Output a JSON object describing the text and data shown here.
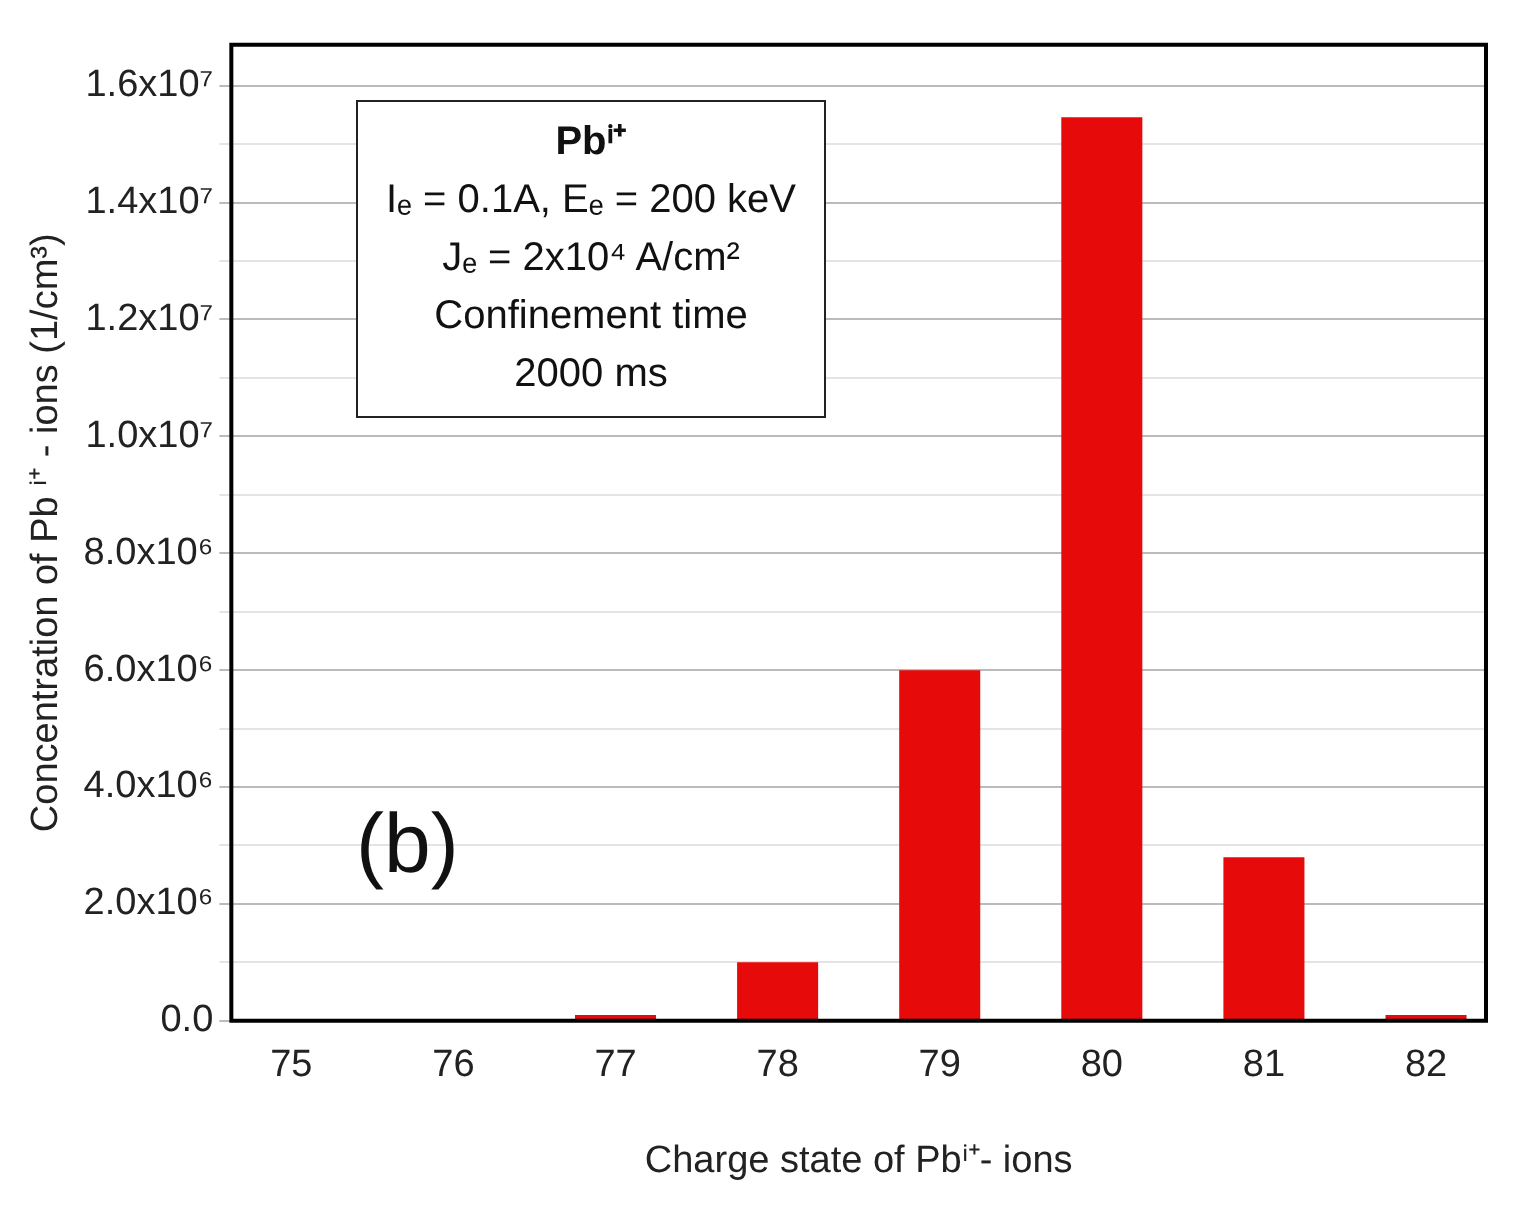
{
  "chart_data": {
    "type": "bar",
    "xlabel": "Charge state of Pbⁱ⁺- ions",
    "ylabel": "Concentration of Pb ⁱ⁺ - ions (1/cm³)",
    "x": [
      77,
      78,
      79,
      80,
      81,
      82
    ],
    "values": [
      100000,
      1000000,
      6000000,
      15460000,
      2800000,
      100000
    ],
    "color": "#e60a0a",
    "xlim": [
      74.63,
      82.37
    ],
    "xticks": [
      75,
      76,
      77,
      78,
      79,
      80,
      81,
      82
    ],
    "ylim": [
      0,
      16700000
    ],
    "yticks": [
      {
        "value": 0,
        "label": "0.0"
      },
      {
        "value": 1000000,
        "label": null
      },
      {
        "value": 2000000,
        "label": "2.0x10⁶"
      },
      {
        "value": 3000000,
        "label": null
      },
      {
        "value": 4000000,
        "label": "4.0x10⁶"
      },
      {
        "value": 5000000,
        "label": null
      },
      {
        "value": 6000000,
        "label": "6.0x10⁶"
      },
      {
        "value": 7000000,
        "label": null
      },
      {
        "value": 8000000,
        "label": "8.0x10⁶"
      },
      {
        "value": 9000000,
        "label": null
      },
      {
        "value": 10000000,
        "label": "1.0x10⁷"
      },
      {
        "value": 11000000,
        "label": null
      },
      {
        "value": 12000000,
        "label": "1.2x10⁷"
      },
      {
        "value": 13000000,
        "label": null
      },
      {
        "value": 14000000,
        "label": "1.4x10⁷"
      },
      {
        "value": 15000000,
        "label": null
      },
      {
        "value": 16000000,
        "label": "1.6x10⁷"
      }
    ],
    "grid": "y",
    "legend": false,
    "annotations": [
      "Pbⁱ⁺",
      "Iₑ = 0.1A, Eₑ = 200 keV",
      "Jₑ = 2x10⁴ A/cm²",
      "Confinement time",
      "2000 ms",
      "(b)"
    ]
  }
}
